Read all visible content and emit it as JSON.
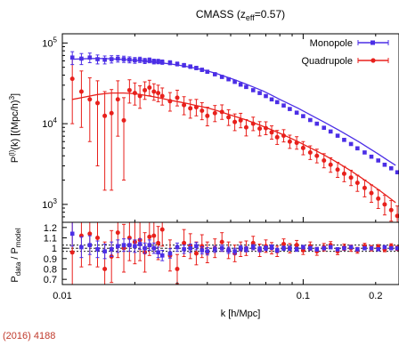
{
  "figure": {
    "title": "CMASS (z_eff=0.57)",
    "caption_fragment": "(2016) 4188"
  },
  "chart_data": [
    {
      "type": "line",
      "title": "CMASS (z_eff=0.57)",
      "xlabel": "",
      "ylabel": "P^(l)(k) [(Mpc/h)^3]",
      "xscale": "log",
      "yscale": "log",
      "xlim": [
        0.01,
        0.25
      ],
      "ylim": [
        600,
        130000
      ],
      "ytick_labels": [
        "10^3",
        "10^4",
        "10^5"
      ],
      "legend": {
        "placement": "top-right",
        "entries": [
          "Monopole",
          "Quadrupole"
        ]
      },
      "series": [
        {
          "name": "Monopole",
          "color": "#4b2ee6",
          "marker": "square",
          "x": [
            0.011,
            0.012,
            0.013,
            0.014,
            0.015,
            0.016,
            0.017,
            0.018,
            0.019,
            0.02,
            0.021,
            0.022,
            0.023,
            0.024,
            0.025,
            0.026,
            0.028,
            0.03,
            0.032,
            0.034,
            0.036,
            0.038,
            0.04,
            0.043,
            0.046,
            0.049,
            0.052,
            0.055,
            0.058,
            0.062,
            0.066,
            0.07,
            0.074,
            0.078,
            0.083,
            0.088,
            0.094,
            0.1,
            0.107,
            0.114,
            0.122,
            0.13,
            0.139,
            0.148,
            0.158,
            0.168,
            0.18,
            0.192,
            0.205,
            0.218,
            0.232,
            0.246
          ],
          "values": [
            66000,
            64000,
            66000,
            63000,
            62000,
            63000,
            64000,
            63000,
            62000,
            61000,
            62000,
            60000,
            61000,
            59000,
            59000,
            58000,
            57000,
            55000,
            53000,
            51000,
            49000,
            46500,
            44000,
            41000,
            38000,
            35500,
            33000,
            30500,
            28500,
            26000,
            24000,
            22000,
            20000,
            18500,
            16800,
            15200,
            13700,
            12400,
            11100,
            10000,
            8900,
            8000,
            7100,
            6300,
            5600,
            4950,
            4400,
            3900,
            3500,
            3100,
            2800,
            2500
          ],
          "errors": [
            12000,
            10000,
            9000,
            8000,
            7000,
            6500,
            6000,
            5600,
            5300,
            5000,
            4700,
            4400,
            4200,
            4000,
            3800,
            3600,
            3300,
            3000,
            2800,
            2600,
            2400,
            2200,
            2000,
            1800,
            1600,
            1450,
            1300,
            1150,
            1050,
            950,
            860,
            780,
            700,
            640,
            580,
            520,
            470,
            420,
            380,
            340,
            300,
            270,
            240,
            215,
            190,
            170,
            150,
            135,
            120,
            108,
            96,
            86
          ]
        },
        {
          "name": "Quadrupole",
          "color": "#e8201c",
          "marker": "circle",
          "x": [
            0.011,
            0.012,
            0.013,
            0.014,
            0.015,
            0.016,
            0.017,
            0.018,
            0.019,
            0.02,
            0.021,
            0.022,
            0.023,
            0.024,
            0.025,
            0.026,
            0.028,
            0.03,
            0.032,
            0.034,
            0.036,
            0.038,
            0.04,
            0.043,
            0.046,
            0.049,
            0.052,
            0.055,
            0.058,
            0.062,
            0.066,
            0.07,
            0.074,
            0.078,
            0.083,
            0.088,
            0.094,
            0.1,
            0.107,
            0.114,
            0.122,
            0.13,
            0.139,
            0.148,
            0.158,
            0.168,
            0.18,
            0.192,
            0.205,
            0.218,
            0.232,
            0.246
          ],
          "values": [
            36000,
            25000,
            20000,
            18000,
            12500,
            13500,
            20000,
            11000,
            26000,
            24000,
            22000,
            26000,
            28000,
            25000,
            24000,
            22000,
            19000,
            21000,
            17000,
            15500,
            16000,
            14500,
            12500,
            13500,
            14000,
            12000,
            10500,
            11000,
            9000,
            10000,
            8700,
            8800,
            7800,
            6800,
            7100,
            6000,
            5800,
            5000,
            4400,
            4000,
            3500,
            3100,
            2700,
            2400,
            2150,
            1850,
            1600,
            1380,
            1180,
            1000,
            850,
            720
          ],
          "errors_low": [
            26000,
            16000,
            14000,
            15000,
            11000,
            12000,
            13000,
            9000,
            8000,
            7000,
            6500,
            6000,
            5800,
            5500,
            5300,
            5000,
            4700,
            4400,
            4100,
            3800,
            3500,
            3300,
            3100,
            2900,
            2700,
            2500,
            2300,
            2100,
            1950,
            1800,
            1650,
            1500,
            1380,
            1270,
            1160,
            1060,
            970,
            880,
            800,
            730,
            660,
            600,
            540,
            490,
            440,
            400,
            360,
            320,
            290,
            260,
            230,
            205
          ],
          "errors_high": [
            30000,
            20000,
            17000,
            16000,
            12500,
            13000,
            14000,
            10000,
            9000,
            8000,
            7500,
            7000,
            6500,
            6200,
            6000,
            5700,
            5300,
            5000,
            4600,
            4300,
            4000,
            3700,
            3500,
            3300,
            3100,
            2900,
            2700,
            2450,
            2250,
            2050,
            1900,
            1750,
            1600,
            1460,
            1330,
            1210,
            1100,
            1000,
            910,
            830,
            750,
            680,
            615,
            555,
            500,
            450,
            405,
            365,
            330,
            295,
            265,
            235
          ]
        },
        {
          "name": "",
          "color": "#4b2ee6",
          "marker": "none",
          "x": [
            0.011,
            0.012,
            0.013,
            0.014,
            0.015,
            0.016,
            0.018,
            0.02,
            0.022,
            0.024,
            0.026,
            0.028,
            0.03,
            0.033,
            0.036,
            0.04,
            0.044,
            0.048,
            0.052,
            0.057,
            0.062,
            0.068,
            0.074,
            0.08,
            0.087,
            0.095,
            0.103,
            0.112,
            0.122,
            0.133,
            0.145,
            0.158,
            0.172,
            0.187,
            0.204,
            0.222,
            0.242
          ],
          "values": [
            63000,
            63500,
            64000,
            64200,
            64000,
            63500,
            62500,
            61000,
            59500,
            58000,
            56500,
            55000,
            53500,
            51000,
            48500,
            45000,
            41500,
            38000,
            35000,
            31500,
            28500,
            25500,
            22500,
            20000,
            17700,
            15600,
            13700,
            12000,
            10500,
            9100,
            7900,
            6800,
            5850,
            5000,
            4250,
            3600,
            3050
          ]
        },
        {
          "name": "",
          "color": "#e8201c",
          "marker": "none",
          "x": [
            0.011,
            0.012,
            0.013,
            0.014,
            0.015,
            0.016,
            0.018,
            0.02,
            0.022,
            0.024,
            0.026,
            0.028,
            0.03,
            0.033,
            0.036,
            0.04,
            0.044,
            0.048,
            0.052,
            0.057,
            0.062,
            0.068,
            0.074,
            0.08,
            0.087,
            0.095,
            0.103,
            0.112,
            0.122,
            0.133,
            0.145,
            0.158,
            0.172,
            0.187,
            0.204,
            0.222,
            0.242
          ],
          "values": [
            20000,
            21000,
            22000,
            23000,
            23500,
            24000,
            24000,
            23500,
            22500,
            21500,
            20500,
            19500,
            18800,
            17800,
            16800,
            15700,
            14500,
            13300,
            12300,
            11300,
            10300,
            9300,
            8400,
            7600,
            6800,
            6000,
            5300,
            4700,
            4100,
            3550,
            3050,
            2600,
            2200,
            1850,
            1550,
            1280,
            1050
          ]
        }
      ]
    },
    {
      "type": "scatter",
      "title": "",
      "xlabel": "k [h/Mpc]",
      "ylabel": "P_data / P_model",
      "xscale": "log",
      "xlim": [
        0.01,
        0.25
      ],
      "ylim": [
        0.65,
        1.25
      ],
      "xtick_labels": [
        "0.01",
        "0.1",
        "0.2"
      ],
      "ytick_labels": [
        "0.7",
        "0.8",
        "0.9",
        "1",
        "1.1",
        "1.2"
      ],
      "reference_lines": [
        1.0,
        0.97,
        1.03
      ],
      "series": [
        {
          "name": "",
          "color": "#4b2ee6",
          "marker": "square",
          "x": [
            0.011,
            0.012,
            0.013,
            0.014,
            0.015,
            0.016,
            0.017,
            0.018,
            0.019,
            0.02,
            0.021,
            0.022,
            0.023,
            0.024,
            0.025,
            0.026,
            0.028,
            0.03,
            0.032,
            0.034,
            0.036,
            0.038,
            0.04,
            0.043,
            0.046,
            0.049,
            0.052,
            0.055,
            0.058,
            0.062,
            0.066,
            0.07,
            0.074,
            0.078,
            0.083,
            0.088,
            0.094,
            0.1,
            0.107,
            0.114,
            0.122,
            0.13,
            0.139,
            0.148,
            0.158,
            0.168,
            0.18,
            0.192,
            0.205,
            0.218,
            0.232,
            0.246
          ],
          "values": [
            1.14,
            1.01,
            1.03,
            0.99,
            0.97,
            0.99,
            1.02,
            1.03,
            1.03,
            1.02,
            1.04,
            1.0,
            1.03,
            1.0,
            0.96,
            0.93,
            0.95,
            1.01,
            0.99,
            1.0,
            1.02,
            0.98,
            0.97,
            0.99,
            1.0,
            0.98,
            0.97,
            1.0,
            0.99,
            1.01,
            0.99,
            1.0,
            1.01,
            0.98,
            1.0,
            1.0,
            0.99,
            1.01,
            1.0,
            0.99,
            1.0,
            1.01,
            0.99,
            1.0,
            1.01,
            0.99,
            1.0,
            1.0,
            0.99,
            1.01,
            1.0,
            1.0
          ],
          "errors": [
            0.12,
            0.1,
            0.09,
            0.08,
            0.07,
            0.07,
            0.06,
            0.06,
            0.06,
            0.06,
            0.05,
            0.05,
            0.05,
            0.05,
            0.05,
            0.05,
            0.045,
            0.04,
            0.04,
            0.04,
            0.035,
            0.035,
            0.035,
            0.03,
            0.03,
            0.03,
            0.03,
            0.025,
            0.025,
            0.025,
            0.025,
            0.022,
            0.022,
            0.02,
            0.02,
            0.02,
            0.02,
            0.018,
            0.018,
            0.018,
            0.016,
            0.016,
            0.016,
            0.015,
            0.015,
            0.015,
            0.014,
            0.014,
            0.014,
            0.013,
            0.013,
            0.013
          ]
        },
        {
          "name": "",
          "color": "#e8201c",
          "marker": "circle",
          "x": [
            0.011,
            0.012,
            0.013,
            0.014,
            0.015,
            0.016,
            0.017,
            0.018,
            0.019,
            0.02,
            0.021,
            0.022,
            0.023,
            0.024,
            0.025,
            0.026,
            0.028,
            0.03,
            0.032,
            0.034,
            0.036,
            0.038,
            0.04,
            0.043,
            0.046,
            0.049,
            0.052,
            0.055,
            0.058,
            0.062,
            0.066,
            0.07,
            0.074,
            0.078,
            0.083,
            0.088,
            0.094,
            0.1,
            0.107,
            0.114,
            0.122,
            0.13,
            0.139,
            0.148,
            0.158,
            0.168,
            0.18,
            0.192,
            0.205,
            0.218,
            0.232,
            0.246
          ],
          "values": [
            0.96,
            1.12,
            1.14,
            1.1,
            0.8,
            0.92,
            1.15,
            1.0,
            1.1,
            1.06,
            1.08,
            0.96,
            1.11,
            1.12,
            1.05,
            1.18,
            0.93,
            0.8,
            1.05,
            1.02,
            0.95,
            1.02,
            0.96,
            1.0,
            1.06,
            0.98,
            0.95,
            0.99,
            1.0,
            1.05,
            0.98,
            1.02,
            1.0,
            0.97,
            1.04,
            1.0,
            1.03,
            0.98,
            1.02,
            0.97,
            1.01,
            1.03,
            0.97,
            1.01,
            1.0,
            0.98,
            1.02,
            1.0,
            1.01,
            0.99,
            1.02,
            1.0
          ],
          "errors": [
            0.35,
            0.3,
            0.3,
            0.28,
            0.26,
            0.25,
            0.24,
            0.23,
            0.22,
            0.21,
            0.2,
            0.19,
            0.18,
            0.17,
            0.16,
            0.16,
            0.15,
            0.14,
            0.13,
            0.12,
            0.11,
            0.11,
            0.1,
            0.09,
            0.09,
            0.08,
            0.08,
            0.07,
            0.07,
            0.065,
            0.06,
            0.06,
            0.055,
            0.05,
            0.05,
            0.045,
            0.045,
            0.04,
            0.04,
            0.038,
            0.036,
            0.034,
            0.032,
            0.03,
            0.03,
            0.028,
            0.027,
            0.026,
            0.025,
            0.024,
            0.023,
            0.022
          ]
        }
      ]
    }
  ]
}
